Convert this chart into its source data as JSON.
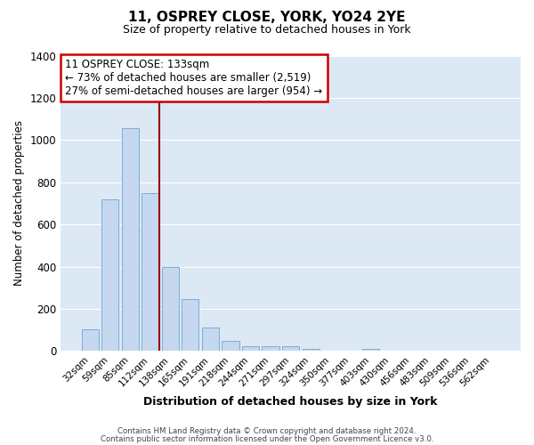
{
  "title": "11, OSPREY CLOSE, YORK, YO24 2YE",
  "subtitle": "Size of property relative to detached houses in York",
  "xlabel": "Distribution of detached houses by size in York",
  "ylabel": "Number of detached properties",
  "bar_color": "#c5d8f0",
  "bar_edge_color": "#7aadd4",
  "bg_color": "#dce9f5",
  "grid_color": "#ffffff",
  "categories": [
    "32sqm",
    "59sqm",
    "85sqm",
    "112sqm",
    "138sqm",
    "165sqm",
    "191sqm",
    "218sqm",
    "244sqm",
    "271sqm",
    "297sqm",
    "324sqm",
    "350sqm",
    "377sqm",
    "403sqm",
    "430sqm",
    "456sqm",
    "483sqm",
    "509sqm",
    "536sqm",
    "562sqm"
  ],
  "values": [
    105,
    720,
    1055,
    750,
    400,
    245,
    110,
    48,
    25,
    25,
    22,
    10,
    0,
    0,
    12,
    0,
    0,
    0,
    0,
    0,
    0
  ],
  "ylim": [
    0,
    1400
  ],
  "yticks": [
    0,
    200,
    400,
    600,
    800,
    1000,
    1200,
    1400
  ],
  "vline_color": "#990000",
  "annotation_title": "11 OSPREY CLOSE: 133sqm",
  "annotation_line1": "← 73% of detached houses are smaller (2,519)",
  "annotation_line2": "27% of semi-detached houses are larger (954) →",
  "annotation_box_edge": "#cc0000",
  "footer_line1": "Contains HM Land Registry data © Crown copyright and database right 2024.",
  "footer_line2": "Contains public sector information licensed under the Open Government Licence v3.0."
}
